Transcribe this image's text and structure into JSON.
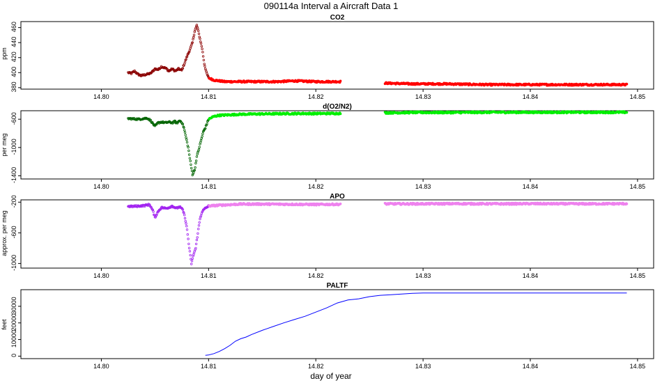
{
  "figure": {
    "title": "090114a   Interval a Aircraft Data 1",
    "xlabel": "day of year"
  },
  "chart_data": [
    {
      "type": "scatter",
      "title": "CO2",
      "ylabel": "ppm",
      "xlim": [
        14.7925,
        14.8515
      ],
      "ylim": [
        378,
        468
      ],
      "xticks": [
        14.8,
        14.81,
        14.82,
        14.83,
        14.84,
        14.85
      ],
      "xtick_labels": [
        "14.80",
        "14.81",
        "14.82",
        "14.83",
        "14.84",
        "14.85"
      ],
      "yticks": [
        380,
        400,
        420,
        440,
        460
      ],
      "ytick_labels": [
        "380",
        "400",
        "420",
        "440",
        "460"
      ],
      "colors": {
        "early": "#8b0000",
        "late": "#ff0000"
      },
      "color_split_x": 14.81,
      "gap": [
        14.8223,
        14.8264
      ],
      "points": [
        [
          14.8025,
          400
        ],
        [
          14.8028,
          399
        ],
        [
          14.8031,
          402
        ],
        [
          14.8034,
          398
        ],
        [
          14.8037,
          396
        ],
        [
          14.804,
          397
        ],
        [
          14.8043,
          398
        ],
        [
          14.8046,
          399
        ],
        [
          14.805,
          405
        ],
        [
          14.8053,
          404
        ],
        [
          14.8056,
          408
        ],
        [
          14.806,
          406
        ],
        [
          14.8063,
          402
        ],
        [
          14.8066,
          405
        ],
        [
          14.8069,
          402
        ],
        [
          14.8072,
          405
        ],
        [
          14.8075,
          403
        ],
        [
          14.8078,
          414
        ],
        [
          14.808,
          422
        ],
        [
          14.8083,
          432
        ],
        [
          14.8085,
          440
        ],
        [
          14.8087,
          455
        ],
        [
          14.8089,
          463
        ],
        [
          14.809,
          458
        ],
        [
          14.8092,
          445
        ],
        [
          14.8094,
          432
        ],
        [
          14.8096,
          412
        ],
        [
          14.8098,
          400
        ],
        [
          14.81,
          393
        ],
        [
          14.8105,
          390
        ],
        [
          14.8115,
          388
        ],
        [
          14.813,
          388
        ],
        [
          14.815,
          388
        ],
        [
          14.8165,
          388
        ],
        [
          14.818,
          389
        ],
        [
          14.82,
          388
        ],
        [
          14.8222,
          388
        ],
        [
          14.8265,
          386
        ],
        [
          14.829,
          385
        ],
        [
          14.832,
          385
        ],
        [
          14.836,
          384
        ],
        [
          14.84,
          384
        ],
        [
          14.845,
          384
        ],
        [
          14.849,
          384
        ]
      ]
    },
    {
      "type": "scatter",
      "title": "d(O2/N2)",
      "ylabel": "per meg",
      "xlim": [
        14.7925,
        14.8515
      ],
      "ylim": [
        -1445,
        -480
      ],
      "xticks": [
        14.8,
        14.81,
        14.82,
        14.83,
        14.84,
        14.85
      ],
      "xtick_labels": [
        "14.80",
        "14.81",
        "14.82",
        "14.83",
        "14.84",
        "14.85"
      ],
      "yticks": [
        -1400,
        -1000,
        -600
      ],
      "ytick_labels": [
        "-1400",
        "-1000",
        "-600"
      ],
      "colors": {
        "early": "#006400",
        "late": "#00ee00"
      },
      "color_split_x": 14.81,
      "gap": [
        14.8223,
        14.8264
      ],
      "points": [
        [
          14.8025,
          -590
        ],
        [
          14.803,
          -595
        ],
        [
          14.8035,
          -600
        ],
        [
          14.804,
          -590
        ],
        [
          14.8043,
          -585
        ],
        [
          14.8046,
          -620
        ],
        [
          14.805,
          -700
        ],
        [
          14.8053,
          -650
        ],
        [
          14.8056,
          -640
        ],
        [
          14.806,
          -650
        ],
        [
          14.8063,
          -640
        ],
        [
          14.8066,
          -650
        ],
        [
          14.8069,
          -630
        ],
        [
          14.807,
          -660
        ],
        [
          14.8073,
          -620
        ],
        [
          14.8075,
          -640
        ],
        [
          14.8077,
          -720
        ],
        [
          14.8079,
          -860
        ],
        [
          14.8081,
          -1000
        ],
        [
          14.8083,
          -1200
        ],
        [
          14.8085,
          -1380
        ],
        [
          14.8087,
          -1320
        ],
        [
          14.8089,
          -1130
        ],
        [
          14.8091,
          -1020
        ],
        [
          14.8093,
          -900
        ],
        [
          14.8095,
          -780
        ],
        [
          14.8097,
          -720
        ],
        [
          14.81,
          -600
        ],
        [
          14.8105,
          -560
        ],
        [
          14.811,
          -545
        ],
        [
          14.813,
          -530
        ],
        [
          14.815,
          -525
        ],
        [
          14.818,
          -520
        ],
        [
          14.82,
          -520
        ],
        [
          14.8222,
          -518
        ],
        [
          14.8265,
          -510
        ],
        [
          14.829,
          -505
        ],
        [
          14.833,
          -505
        ],
        [
          14.837,
          -502
        ],
        [
          14.84,
          -502
        ],
        [
          14.845,
          -502
        ],
        [
          14.849,
          -502
        ]
      ]
    },
    {
      "type": "scatter",
      "title": "APO",
      "ylabel": "approx. per meg",
      "xlim": [
        14.7925,
        14.8515
      ],
      "ylim": [
        -1060,
        -170
      ],
      "xticks": [
        14.8,
        14.81,
        14.82,
        14.83,
        14.84,
        14.85
      ],
      "xtick_labels": [
        "14.80",
        "14.81",
        "14.82",
        "14.83",
        "14.84",
        "14.85"
      ],
      "yticks": [
        -1000,
        -600,
        -200
      ],
      "ytick_labels": [
        "-1000",
        "-600",
        "-200"
      ],
      "colors": {
        "early": "#a020f0",
        "late": "#ee82ee"
      },
      "color_split_x": 14.81,
      "gap": [
        14.8223,
        14.8264
      ],
      "points": [
        [
          14.8025,
          -255
        ],
        [
          14.803,
          -255
        ],
        [
          14.8035,
          -250
        ],
        [
          14.804,
          -245
        ],
        [
          14.8045,
          -230
        ],
        [
          14.8048,
          -310
        ],
        [
          14.805,
          -400
        ],
        [
          14.8053,
          -320
        ],
        [
          14.8056,
          -270
        ],
        [
          14.806,
          -280
        ],
        [
          14.8063,
          -270
        ],
        [
          14.8066,
          -250
        ],
        [
          14.807,
          -280
        ],
        [
          14.8073,
          -260
        ],
        [
          14.8076,
          -300
        ],
        [
          14.8078,
          -400
        ],
        [
          14.808,
          -560
        ],
        [
          14.8082,
          -800
        ],
        [
          14.8084,
          -1000
        ],
        [
          14.8086,
          -880
        ],
        [
          14.8088,
          -800
        ],
        [
          14.809,
          -600
        ],
        [
          14.8092,
          -420
        ],
        [
          14.8094,
          -320
        ],
        [
          14.8097,
          -280
        ],
        [
          14.81,
          -250
        ],
        [
          14.811,
          -240
        ],
        [
          14.813,
          -225
        ],
        [
          14.815,
          -225
        ],
        [
          14.818,
          -228
        ],
        [
          14.82,
          -230
        ],
        [
          14.8222,
          -228
        ],
        [
          14.8265,
          -222
        ],
        [
          14.829,
          -222
        ],
        [
          14.833,
          -220
        ],
        [
          14.837,
          -222
        ],
        [
          14.84,
          -220
        ],
        [
          14.845,
          -222
        ],
        [
          14.849,
          -220
        ]
      ]
    },
    {
      "type": "line",
      "title": "PALTF",
      "ylabel": "feet",
      "xlim": [
        14.7925,
        14.8515
      ],
      "ylim": [
        -1500,
        40000
      ],
      "xticks": [
        14.8,
        14.81,
        14.82,
        14.83,
        14.84,
        14.85
      ],
      "xtick_labels": [
        "14.80",
        "14.81",
        "14.82",
        "14.83",
        "14.84",
        "14.85"
      ],
      "yticks": [
        0,
        10000,
        20000,
        30000
      ],
      "ytick_labels": [
        "0",
        "10000",
        "20000",
        "30000"
      ],
      "colors": {
        "line": "#0000ff"
      },
      "x": [
        14.8097,
        14.81,
        14.8105,
        14.811,
        14.8115,
        14.812,
        14.8125,
        14.813,
        14.8135,
        14.814,
        14.815,
        14.816,
        14.817,
        14.818,
        14.819,
        14.82,
        14.821,
        14.822,
        14.823,
        14.824,
        14.825,
        14.826,
        14.827,
        14.828,
        14.829,
        14.83,
        14.832,
        14.835,
        14.84,
        14.845,
        14.849
      ],
      "values": [
        500,
        700,
        1500,
        2800,
        4500,
        6500,
        9000,
        10500,
        11500,
        13000,
        15500,
        17800,
        20000,
        22000,
        24000,
        26500,
        29000,
        32000,
        33800,
        34500,
        35800,
        36600,
        37000,
        37400,
        37800,
        38000,
        38000,
        38000,
        38000,
        38000,
        38000
      ]
    }
  ]
}
